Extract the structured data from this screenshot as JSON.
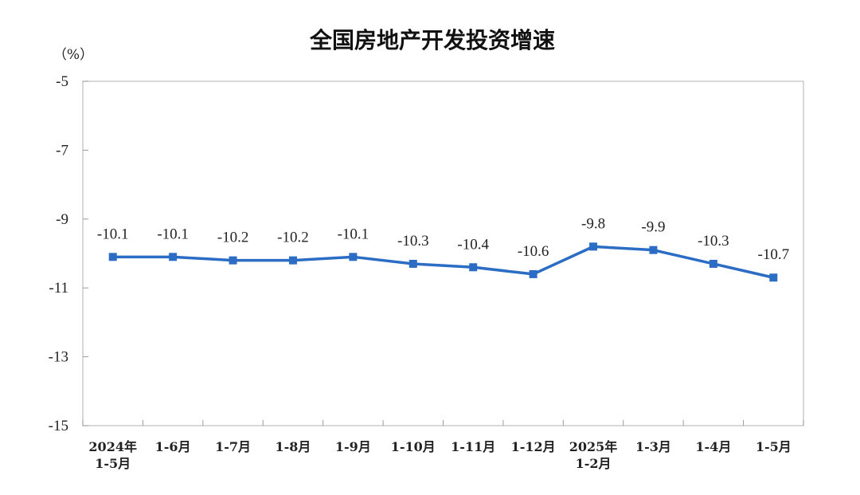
{
  "chart_data": {
    "type": "line",
    "title": "全国房地产开发投资增速",
    "ylabel": "（%）",
    "xlabel": "",
    "ylim": [
      -15,
      -5
    ],
    "yticks": [
      -5,
      -7,
      -9,
      -11,
      -13,
      -15
    ],
    "categories": [
      [
        "2024年",
        "1-5月"
      ],
      [
        "1-6月"
      ],
      [
        "1-7月"
      ],
      [
        "1-8月"
      ],
      [
        "1-9月"
      ],
      [
        "1-10月"
      ],
      [
        "1-11月"
      ],
      [
        "1-12月"
      ],
      [
        "2025年",
        "1-2月"
      ],
      [
        "1-3月"
      ],
      [
        "1-4月"
      ],
      [
        "1-5月"
      ]
    ],
    "series": [
      {
        "values": [
          -10.1,
          -10.1,
          -10.2,
          -10.2,
          -10.1,
          -10.3,
          -10.4,
          -10.6,
          -9.8,
          -9.9,
          -10.3,
          -10.7
        ],
        "labels": [
          "-10.1",
          "-10.1",
          "-10.2",
          "-10.2",
          "-10.1",
          "-10.3",
          "-10.4",
          "-10.6",
          "-9.8",
          "-9.9",
          "-10.3",
          "-10.7"
        ],
        "color": "#2b6cc4"
      }
    ],
    "grid": false,
    "legend": "none"
  }
}
